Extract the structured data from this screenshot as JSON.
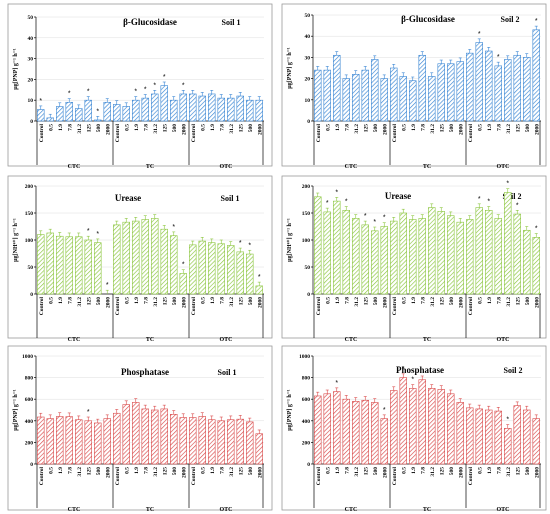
{
  "chart_data": [
    {
      "type": "bar",
      "title": "β-Glucosidase",
      "soil": "Soil 1",
      "ylabel": "µg[PNP] g⁻¹ h⁻¹",
      "ylim": [
        0,
        50
      ],
      "yticks": [
        0,
        10,
        20,
        30,
        40,
        50
      ],
      "groups": [
        "CTC",
        "TC",
        "OTC"
      ],
      "categories": [
        "Control",
        "0.5",
        "1.9",
        "7.8",
        "31.2",
        "125",
        "500",
        "2000"
      ],
      "color": "#3a86d4",
      "series": [
        {
          "group": "CTC",
          "values": [
            5.5,
            1.5,
            7,
            9,
            6,
            10,
            0.5,
            9
          ]
        },
        {
          "group": "TC",
          "values": [
            8,
            7,
            10,
            11,
            13,
            17,
            10,
            13
          ]
        },
        {
          "group": "OTC",
          "values": [
            13,
            12,
            13,
            11,
            11,
            12,
            10,
            10
          ]
        }
      ],
      "significant": [
        [
          0,
          3,
          5,
          6
        ],
        [
          2,
          3,
          4,
          5,
          7
        ],
        []
      ]
    },
    {
      "type": "bar",
      "title": "β-Glucosidase",
      "soil": "Soil 2",
      "ylabel": "µg[PNP] g⁻¹ h⁻¹",
      "ylim": [
        0,
        50
      ],
      "yticks": [
        0,
        10,
        20,
        30,
        40,
        50
      ],
      "groups": [
        "CTC",
        "TC",
        "OTC"
      ],
      "categories": [
        "Control",
        "0.5",
        "1.9",
        "7.8",
        "31.2",
        "125",
        "500",
        "2000"
      ],
      "color": "#3a86d4",
      "series": [
        {
          "group": "CTC",
          "values": [
            24,
            24,
            31,
            20,
            22,
            24,
            29,
            20
          ]
        },
        {
          "group": "TC",
          "values": [
            25,
            21,
            19,
            31,
            21,
            27,
            27,
            28
          ]
        },
        {
          "group": "OTC",
          "values": [
            32,
            37,
            33,
            26,
            29,
            31,
            30,
            43
          ]
        }
      ],
      "significant": [
        [],
        [],
        [
          1,
          3,
          7
        ]
      ]
    },
    {
      "type": "bar",
      "title": "Urease",
      "soil": "Soil 1",
      "ylabel": "µg[NH⁴⁺] g⁻¹ h⁻¹",
      "ylim": [
        0,
        200
      ],
      "yticks": [
        0,
        50,
        100,
        150,
        200
      ],
      "groups": [
        "CTC",
        "TC",
        "OTC"
      ],
      "categories": [
        "Control",
        "0.5",
        "1.9",
        "7.8",
        "31.2",
        "125",
        "500",
        "2000"
      ],
      "color": "#8cc63f",
      "series": [
        {
          "group": "CTC",
          "values": [
            110,
            113,
            107,
            106,
            106,
            100,
            95,
            0
          ]
        },
        {
          "group": "TC",
          "values": [
            128,
            133,
            135,
            138,
            140,
            120,
            108,
            38
          ]
        },
        {
          "group": "OTC",
          "values": [
            91,
            98,
            95,
            93,
            90,
            78,
            74,
            15
          ]
        }
      ],
      "significant": [
        [
          5,
          6,
          7
        ],
        [
          6,
          7
        ],
        [
          5,
          6,
          7
        ]
      ]
    },
    {
      "type": "bar",
      "title": "Urease",
      "soil": "Soil 2",
      "ylabel": "µg[NH⁴⁺] g⁻¹ h⁻¹",
      "ylim": [
        0,
        200
      ],
      "yticks": [
        0,
        50,
        100,
        150,
        200
      ],
      "groups": [
        "CTC",
        "TC",
        "OTC"
      ],
      "categories": [
        "Control",
        "0.5",
        "1.9",
        "7.8",
        "31.2",
        "125",
        "500",
        "2000"
      ],
      "color": "#8cc63f",
      "series": [
        {
          "group": "CTC",
          "values": [
            180,
            152,
            172,
            155,
            140,
            128,
            117,
            125
          ]
        },
        {
          "group": "TC",
          "values": [
            135,
            150,
            138,
            140,
            160,
            153,
            145,
            133
          ]
        },
        {
          "group": "OTC",
          "values": [
            138,
            160,
            155,
            140,
            188,
            148,
            118,
            105
          ]
        }
      ],
      "significant": [
        [
          1,
          2,
          3,
          5,
          6,
          7
        ],
        [],
        [
          1,
          2,
          4,
          5,
          7
        ]
      ]
    },
    {
      "type": "bar",
      "title": "Phosphatase",
      "soil": "Soil 1",
      "ylabel": "µg[PNP] g⁻¹ h⁻¹",
      "ylim": [
        0,
        1000
      ],
      "yticks": [
        0,
        200,
        400,
        600,
        800,
        1000
      ],
      "groups": [
        "CTC",
        "TC",
        "OTC"
      ],
      "categories": [
        "Control",
        "0.5",
        "1.9",
        "7.8",
        "31.2",
        "125",
        "500",
        "2000"
      ],
      "color": "#d94a4a",
      "series": [
        {
          "group": "CTC",
          "values": [
            435,
            420,
            440,
            438,
            410,
            400,
            380,
            420
          ]
        },
        {
          "group": "TC",
          "values": [
            470,
            550,
            570,
            510,
            500,
            510,
            460,
            430
          ]
        },
        {
          "group": "OTC",
          "values": [
            430,
            440,
            410,
            400,
            410,
            415,
            390,
            280
          ]
        }
      ],
      "significant": [
        [
          5
        ],
        [],
        []
      ]
    },
    {
      "type": "bar",
      "title": "Phosphatase",
      "soil": "Soil 2",
      "ylabel": "µg[PNP] g⁻¹ h⁻¹",
      "ylim": [
        0,
        1000
      ],
      "yticks": [
        0,
        200,
        400,
        600,
        800,
        1000
      ],
      "groups": [
        "CTC",
        "TC",
        "OTC"
      ],
      "categories": [
        "Control",
        "0.5",
        "1.9",
        "7.8",
        "31.2",
        "125",
        "500",
        "2000"
      ],
      "color": "#d94a4a",
      "series": [
        {
          "group": "CTC",
          "values": [
            630,
            650,
            670,
            600,
            580,
            590,
            570,
            420
          ]
        },
        {
          "group": "TC",
          "values": [
            680,
            800,
            700,
            780,
            700,
            690,
            650,
            570
          ]
        },
        {
          "group": "OTC",
          "values": [
            520,
            510,
            500,
            490,
            330,
            540,
            500,
            420
          ]
        }
      ],
      "significant": [
        [
          2,
          7
        ],
        [
          1,
          2
        ],
        [
          4
        ]
      ]
    }
  ]
}
